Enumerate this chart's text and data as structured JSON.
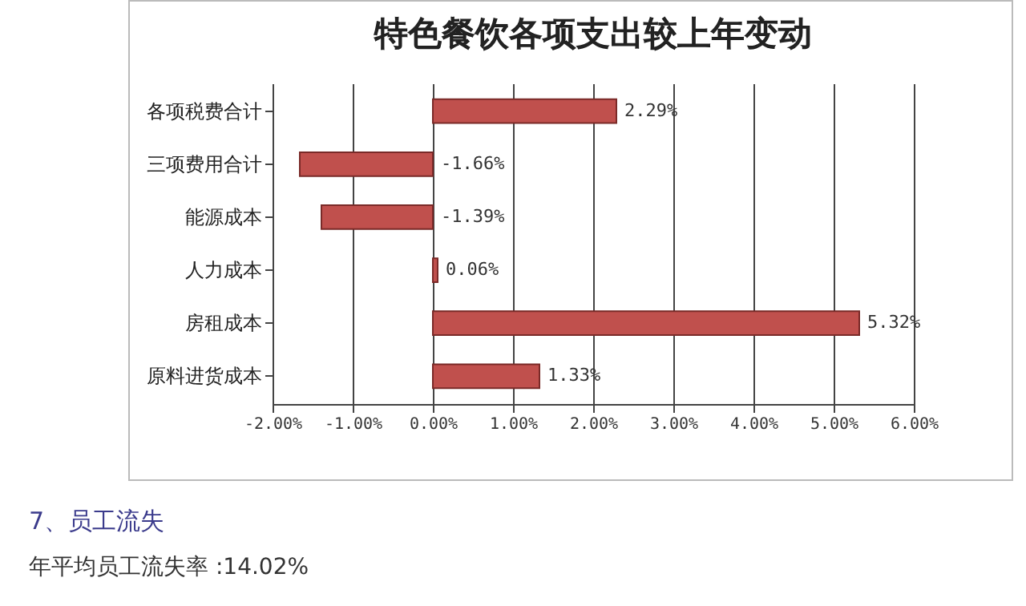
{
  "chart_data": {
    "type": "bar",
    "orientation": "horizontal",
    "title": "特色餐饮各项支出较上年变动",
    "categories": [
      "各项税费合计",
      "三项费用合计",
      "能源成本",
      "人力成本",
      "房租成本",
      "原料进货成本"
    ],
    "values": [
      2.29,
      -1.66,
      -1.39,
      0.06,
      5.32,
      1.33
    ],
    "value_labels": [
      "2.29%",
      "-1.66%",
      "-1.39%",
      "0.06%",
      "5.32%",
      "1.33%"
    ],
    "color": "#c0504d",
    "xlim": [
      -2,
      6
    ],
    "xticks": [
      {
        "value": -2,
        "label": "-2.00%"
      },
      {
        "value": -1,
        "label": "-1.00%"
      },
      {
        "value": 0,
        "label": "0.00%"
      },
      {
        "value": 1,
        "label": "1.00%"
      },
      {
        "value": 2,
        "label": "2.00%"
      },
      {
        "value": 3,
        "label": "3.00%"
      },
      {
        "value": 4,
        "label": "4.00%"
      },
      {
        "value": 5,
        "label": "5.00%"
      },
      {
        "value": 6,
        "label": "6.00%"
      }
    ],
    "grid": "x",
    "annotations": [
      "7、员工流失",
      "年平均员工流失率 :14.02%"
    ]
  }
}
